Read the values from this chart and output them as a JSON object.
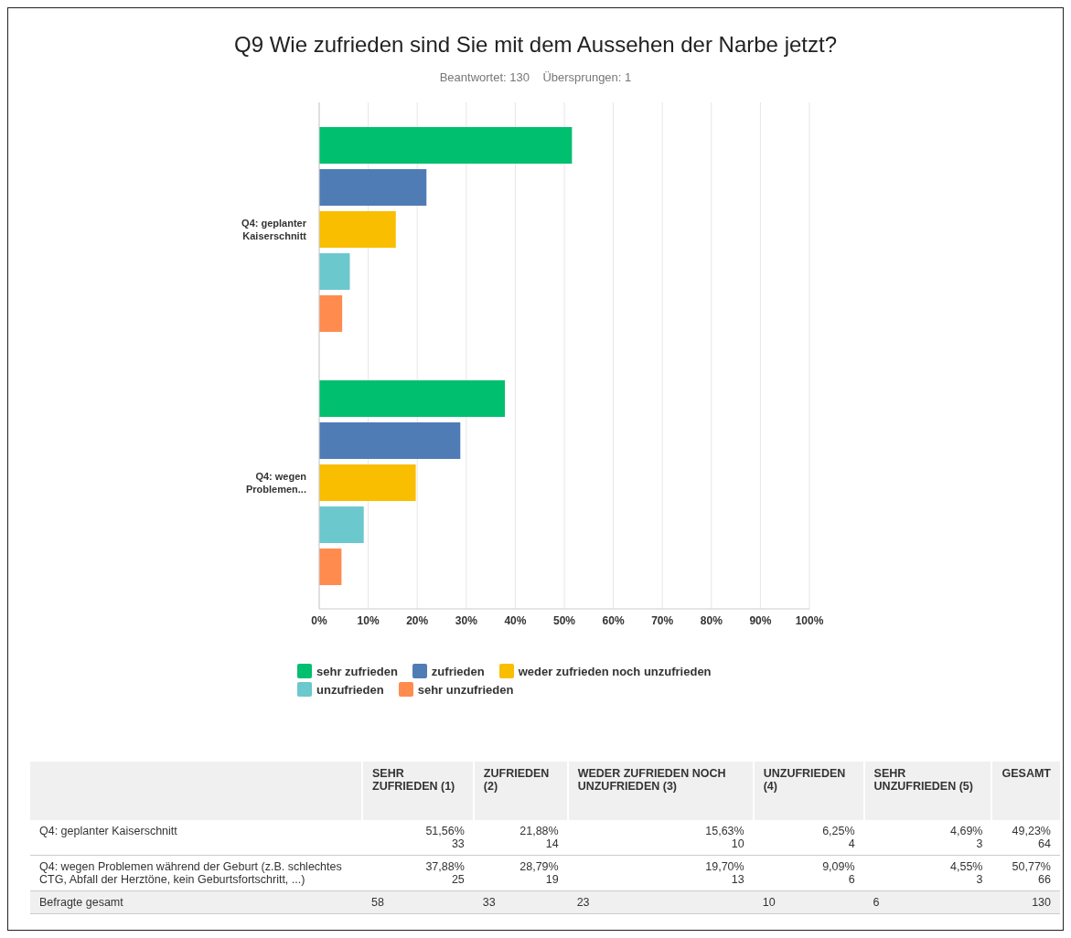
{
  "chart_data": {
    "type": "bar",
    "orientation": "horizontal",
    "title": "Q9 Wie zufrieden sind Sie mit dem Aussehen der Narbe jetzt?",
    "subtitle": "Beantwortet: 130    Übersprungen: 1",
    "categories": [
      "Q4: geplanter Kaiserschnitt",
      "Q4: wegen Problemen..."
    ],
    "series": [
      {
        "name": "sehr zufrieden",
        "color": "#00bf6f",
        "values": [
          51.56,
          37.88
        ]
      },
      {
        "name": "zufrieden",
        "color": "#507cb6",
        "values": [
          21.88,
          28.79
        ]
      },
      {
        "name": "weder zufrieden noch unzufrieden",
        "color": "#f9be00",
        "values": [
          15.63,
          19.7
        ]
      },
      {
        "name": "unzufrieden",
        "color": "#6bc8cd",
        "values": [
          6.25,
          9.09
        ]
      },
      {
        "name": "sehr unzufrieden",
        "color": "#ff8b4f",
        "values": [
          4.69,
          4.55
        ]
      }
    ],
    "xlim": [
      0,
      100
    ],
    "xticks": [
      {
        "value": 0,
        "label": "0%"
      },
      {
        "value": 10,
        "label": "10%"
      },
      {
        "value": 20,
        "label": "20%"
      },
      {
        "value": 30,
        "label": "30%"
      },
      {
        "value": 40,
        "label": "40%"
      },
      {
        "value": 50,
        "label": "50%"
      },
      {
        "value": 60,
        "label": "60%"
      },
      {
        "value": 70,
        "label": "70%"
      },
      {
        "value": 80,
        "label": "80%"
      },
      {
        "value": 90,
        "label": "90%"
      },
      {
        "value": 100,
        "label": "100%"
      }
    ],
    "grid": "x",
    "legend": "bottom",
    "annotations": [
      "SEHR ZUFRIEDEN (1)",
      "ZUFRIEDEN (2)",
      "WEDER ZUFRIEDEN NOCH UNZUFRIEDEN (3)",
      "UNZUFRIEDEN (4)",
      "SEHR UNZUFRIEDEN (5)",
      "GESAMT",
      "Q4: geplanter Kaiserschnitt",
      "51,56%\n33",
      "21,88%\n14",
      "15,63%\n10",
      "6,25%\n4",
      "4,69%\n3",
      "49,23%\n64",
      "Q4: wegen Problemen während der Geburt (z.B. schlechtes CTG, Abfall der Herztöne, kein Geburtsfortschritt, ...)",
      "37,88%\n25",
      "28,79%\n19",
      "19,70%\n13",
      "9,09%\n6",
      "4,55%\n3",
      "50,77%\n66",
      "Befragte gesamt",
      "58",
      "33",
      "23",
      "10",
      "6",
      "130"
    ]
  }
}
